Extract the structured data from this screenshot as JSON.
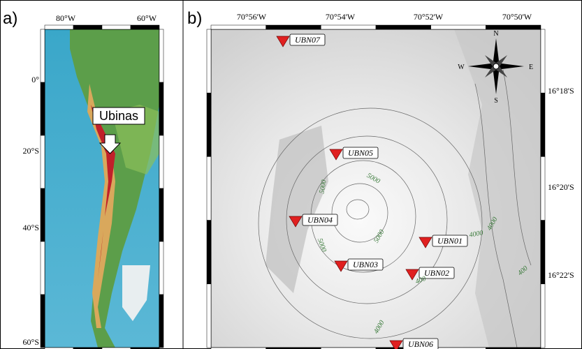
{
  "panels": {
    "a": {
      "label": "a)",
      "top_ticks": [
        "80°W",
        "60°W"
      ],
      "left_ticks": [
        "0°",
        "20°S",
        "40°S",
        "60°S"
      ],
      "callout": "Ubinas"
    },
    "b": {
      "label": "b)",
      "top_ticks": [
        "70°56'W",
        "70°54'W",
        "70°52'W",
        "70°50'W"
      ],
      "right_ticks": [
        "16°18'S",
        "16°20'S",
        "16°22'S"
      ],
      "stations": [
        "UBN07",
        "UBN05",
        "UBN04",
        "UBN01",
        "UBN03",
        "UBN02",
        "UBN06"
      ],
      "contour_labels": [
        "5000",
        "5000",
        "5000",
        "5000",
        "4000",
        "4000",
        "4000",
        "400",
        "400"
      ],
      "compass": {
        "n": "N",
        "s": "S",
        "e": "E",
        "w": "W"
      }
    }
  }
}
